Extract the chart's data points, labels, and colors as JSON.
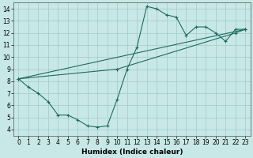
{
  "xlabel": "Humidex (Indice chaleur)",
  "ylabel": "",
  "bg_color": "#c8e8e8",
  "grid_color": "#a8cccc",
  "line_color": "#1e6b5e",
  "xlim": [
    -0.5,
    23.5
  ],
  "ylim": [
    3.5,
    14.5
  ],
  "xticks": [
    0,
    1,
    2,
    3,
    4,
    5,
    6,
    7,
    8,
    9,
    10,
    11,
    12,
    13,
    14,
    15,
    16,
    17,
    18,
    19,
    20,
    21,
    22,
    23
  ],
  "yticks": [
    4,
    5,
    6,
    7,
    8,
    9,
    10,
    11,
    12,
    13,
    14
  ],
  "line1_x": [
    0,
    1,
    2,
    3,
    4,
    5,
    6,
    7,
    8,
    9,
    10,
    11,
    12,
    13,
    14,
    15,
    16,
    17,
    18,
    19,
    20,
    21,
    22,
    23
  ],
  "line1_y": [
    8.2,
    7.5,
    7.0,
    6.3,
    5.2,
    5.2,
    4.8,
    4.3,
    4.2,
    4.3,
    6.5,
    9.0,
    10.8,
    14.2,
    14.0,
    13.5,
    13.3,
    11.8,
    12.5,
    12.5,
    12.0,
    11.3,
    12.3,
    12.3
  ],
  "line2_x": [
    0,
    23
  ],
  "line2_y": [
    8.2,
    12.3
  ],
  "line3_x": [
    0,
    10,
    22,
    23
  ],
  "line3_y": [
    8.2,
    9.0,
    12.0,
    12.3
  ]
}
